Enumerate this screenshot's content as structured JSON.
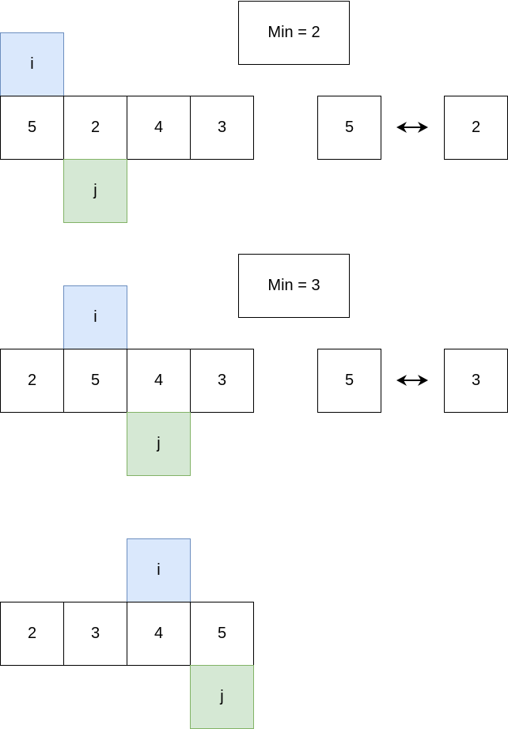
{
  "steps": [
    {
      "array": [
        "5",
        "2",
        "4",
        "3"
      ],
      "i_label": "i",
      "j_label": "j",
      "min_label": "Min = 2",
      "swap": [
        "5",
        "2"
      ]
    },
    {
      "array": [
        "2",
        "5",
        "4",
        "3"
      ],
      "i_label": "i",
      "j_label": "j",
      "min_label": "Min = 3",
      "swap": [
        "5",
        "3"
      ]
    },
    {
      "array": [
        "2",
        "3",
        "4",
        "5"
      ],
      "i_label": "i",
      "j_label": "j"
    }
  ],
  "colors": {
    "i_fill": "#dae8fc",
    "i_stroke": "#6c8ebf",
    "j_fill": "#d5e8d4",
    "j_stroke": "#82b366"
  }
}
